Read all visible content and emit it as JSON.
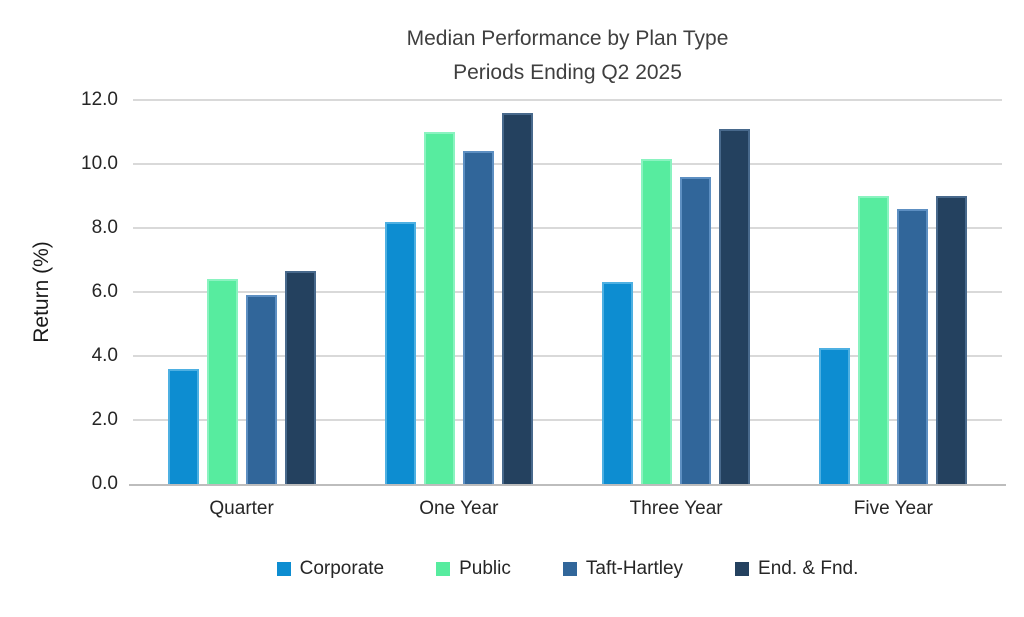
{
  "chart_data": {
    "type": "bar",
    "title": "Median Performance by Plan Type",
    "subtitle": "Periods Ending Q2 2025",
    "ylabel": "Return (%)",
    "categories": [
      "Quarter",
      "One Year",
      "Three Year",
      "Five Year"
    ],
    "series": [
      {
        "name": "Corporate",
        "color": "#0d8dd1",
        "border_color": "#4eb0e2",
        "values": [
          3.6,
          8.2,
          6.3,
          4.25
        ]
      },
      {
        "name": "Public",
        "color": "#57ec9f",
        "border_color": "#8af3c0",
        "values": [
          6.4,
          11.0,
          10.15,
          9.0
        ]
      },
      {
        "name": "Taft-Hartley",
        "color": "#31669a",
        "border_color": "#5d8fc2",
        "values": [
          5.9,
          10.4,
          9.6,
          8.6
        ]
      },
      {
        "name": "End. & Fnd.",
        "color": "#24415f",
        "border_color": "#48698c",
        "values": [
          6.65,
          11.6,
          11.1,
          9.0
        ]
      }
    ],
    "ylim": [
      0,
      12
    ],
    "ytick_step": 2,
    "ytick_labels": [
      "0.0",
      "2.0",
      "4.0",
      "6.0",
      "8.0",
      "10.0",
      "12.0"
    ],
    "grid": true,
    "legend_position": "bottom"
  }
}
